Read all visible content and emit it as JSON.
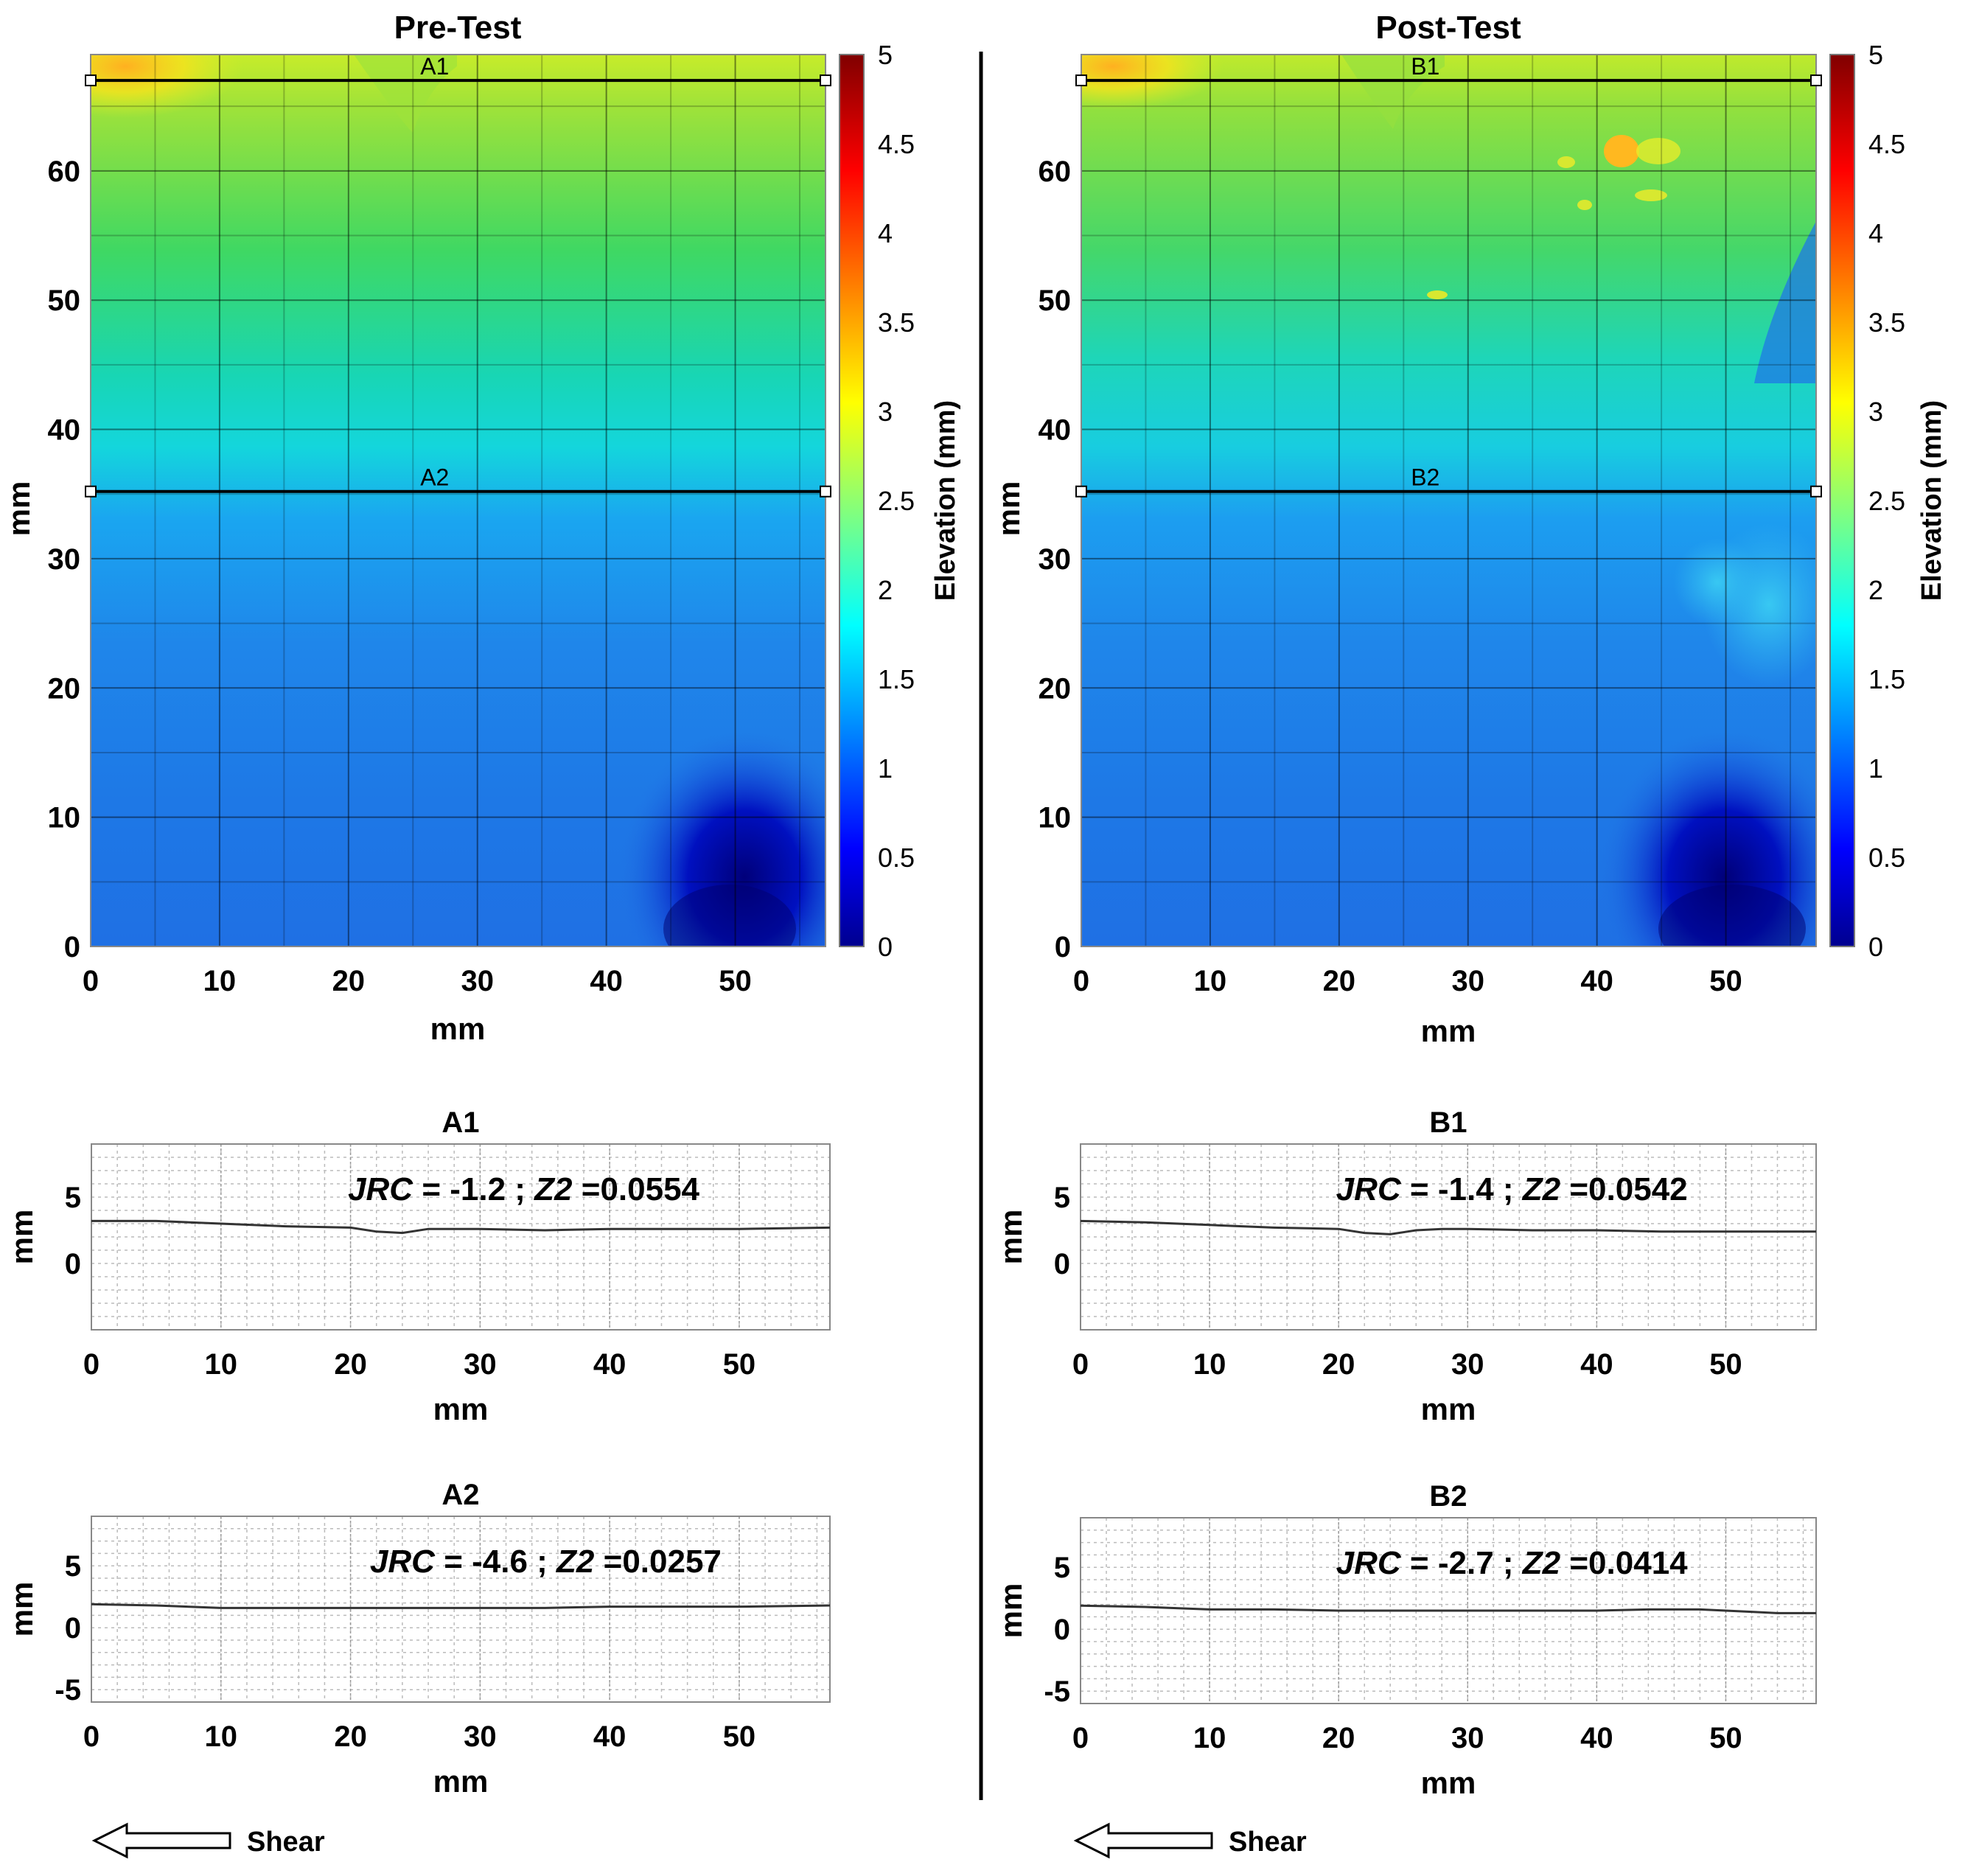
{
  "chart_data": [
    {
      "id": "pre-map",
      "type": "heatmap",
      "title": "Pre-Test",
      "xlabel": "mm",
      "ylabel": "mm",
      "xlim": [
        0,
        57
      ],
      "ylim": [
        0,
        69
      ],
      "xticks": [
        "0",
        "10",
        "20",
        "30",
        "40",
        "50"
      ],
      "yticks": [
        "0",
        "10",
        "20",
        "30",
        "40",
        "50",
        "60"
      ],
      "lines": [
        {
          "label": "A1",
          "y": 67
        },
        {
          "label": "A2",
          "y": 35.2
        }
      ],
      "colorbar": {
        "label": "Elevation (mm)",
        "range": [
          0,
          5
        ],
        "ticks": [
          "0",
          "0.5",
          "1",
          "1.5",
          "2",
          "2.5",
          "3",
          "3.5",
          "4",
          "4.5",
          "5"
        ]
      }
    },
    {
      "id": "post-map",
      "type": "heatmap",
      "title": "Post-Test",
      "xlabel": "mm",
      "ylabel": "mm",
      "xlim": [
        0,
        57
      ],
      "ylim": [
        0,
        69
      ],
      "xticks": [
        "0",
        "10",
        "20",
        "30",
        "40",
        "50"
      ],
      "yticks": [
        "0",
        "10",
        "20",
        "30",
        "40",
        "50",
        "60"
      ],
      "lines": [
        {
          "label": "B1",
          "y": 67
        },
        {
          "label": "B2",
          "y": 35.2
        }
      ],
      "colorbar": {
        "label": "Elevation (mm)",
        "range": [
          0,
          5
        ],
        "ticks": [
          "0",
          "0.5",
          "1",
          "1.5",
          "2",
          "2.5",
          "3",
          "3.5",
          "4",
          "4.5",
          "5"
        ]
      }
    },
    {
      "id": "A1",
      "type": "line",
      "title": "A1",
      "xlabel": "mm",
      "ylabel": "mm",
      "xlim": [
        0,
        57
      ],
      "ylim": [
        -5,
        9
      ],
      "xticks": [
        "0",
        "10",
        "20",
        "30",
        "40",
        "50"
      ],
      "yticks": [
        "0",
        "5"
      ],
      "annotation": {
        "jrc_label": "JRC",
        "jrc_text": " = -1.2 ; ",
        "z2_label": "Z2",
        "z2_text": " =0.0554"
      },
      "x": [
        0,
        5,
        10,
        15,
        20,
        22,
        24,
        26,
        28,
        30,
        35,
        40,
        45,
        50,
        57
      ],
      "y": [
        3.2,
        3.2,
        3.0,
        2.8,
        2.7,
        2.4,
        2.3,
        2.6,
        2.6,
        2.6,
        2.5,
        2.6,
        2.6,
        2.6,
        2.7
      ]
    },
    {
      "id": "B1",
      "type": "line",
      "title": "B1",
      "xlabel": "mm",
      "ylabel": "mm",
      "xlim": [
        0,
        57
      ],
      "ylim": [
        -5,
        9
      ],
      "xticks": [
        "0",
        "10",
        "20",
        "30",
        "40",
        "50"
      ],
      "yticks": [
        "0",
        "5"
      ],
      "annotation": {
        "jrc_label": "JRC",
        "jrc_text": " = -1.4 ; ",
        "z2_label": "Z2",
        "z2_text": " =0.0542"
      },
      "x": [
        0,
        5,
        10,
        15,
        20,
        22,
        24,
        26,
        28,
        30,
        35,
        40,
        45,
        50,
        57
      ],
      "y": [
        3.2,
        3.1,
        2.9,
        2.7,
        2.6,
        2.3,
        2.2,
        2.5,
        2.6,
        2.6,
        2.5,
        2.5,
        2.4,
        2.4,
        2.4
      ]
    },
    {
      "id": "A2",
      "type": "line",
      "title": "A2",
      "xlabel": "mm",
      "ylabel": "mm",
      "xlim": [
        0,
        57
      ],
      "ylim": [
        -6,
        9
      ],
      "xticks": [
        "0",
        "10",
        "20",
        "30",
        "40",
        "50"
      ],
      "yticks": [
        "-5",
        "0",
        "5"
      ],
      "annotation": {
        "jrc_label": "JRC",
        "jrc_text": " = -4.6 ; ",
        "z2_label": "Z2",
        "z2_text": " =0.0257"
      },
      "x": [
        0,
        5,
        10,
        15,
        20,
        25,
        30,
        35,
        40,
        45,
        50,
        57
      ],
      "y": [
        1.9,
        1.8,
        1.6,
        1.6,
        1.6,
        1.6,
        1.6,
        1.6,
        1.7,
        1.7,
        1.7,
        1.8
      ]
    },
    {
      "id": "B2",
      "type": "line",
      "title": "B2",
      "xlabel": "mm",
      "ylabel": "mm",
      "xlim": [
        0,
        57
      ],
      "ylim": [
        -6,
        9
      ],
      "xticks": [
        "0",
        "10",
        "20",
        "30",
        "40",
        "50"
      ],
      "yticks": [
        "-5",
        "0",
        "5"
      ],
      "annotation": {
        "jrc_label": "JRC",
        "jrc_text": " = -2.7 ; ",
        "z2_label": "Z2",
        "z2_text": " =0.0414"
      },
      "x": [
        0,
        5,
        10,
        15,
        20,
        25,
        30,
        35,
        40,
        44,
        45,
        48,
        52,
        54,
        57
      ],
      "y": [
        1.9,
        1.8,
        1.6,
        1.6,
        1.5,
        1.5,
        1.5,
        1.5,
        1.5,
        1.6,
        1.6,
        1.6,
        1.4,
        1.3,
        1.3
      ]
    }
  ],
  "shear_labels": {
    "left": "Shear",
    "right": "Shear"
  }
}
